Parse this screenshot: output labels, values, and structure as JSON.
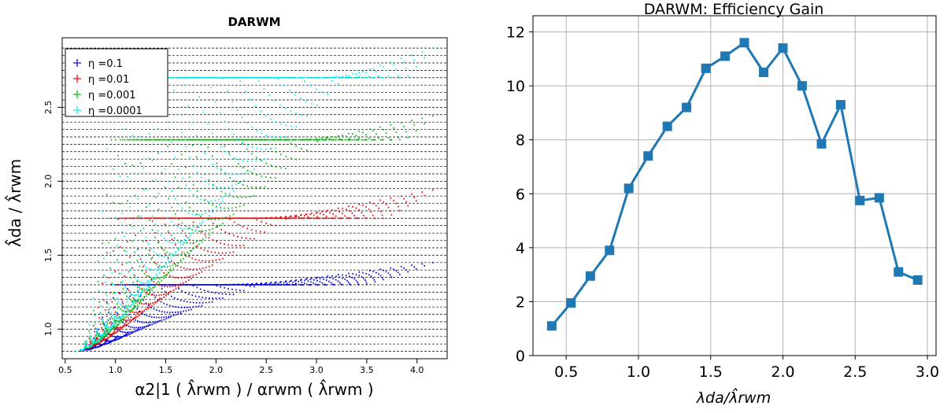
{
  "chart_data": [
    {
      "type": "scatter",
      "title": "DARWM",
      "xlabel": "α2|1 ( λ̂rwm ) /  αrwm ( λ̂rwm )",
      "ylabel": "λ̂da / λ̂rwm",
      "xlim": [
        0.47,
        4.3
      ],
      "ylim": [
        0.8,
        2.97
      ],
      "xticks": [
        {
          "v": 0.5,
          "label": "0.5"
        },
        {
          "v": 1.0,
          "label": "1.0"
        },
        {
          "v": 1.5,
          "label": "1.5"
        },
        {
          "v": 2.0,
          "label": "2.0"
        },
        {
          "v": 2.5,
          "label": "2.5"
        },
        {
          "v": 3.0,
          "label": "3.0"
        },
        {
          "v": 3.5,
          "label": "3.5"
        },
        {
          "v": 4.0,
          "label": "4.0"
        }
      ],
      "yticks": [
        {
          "v": 1.0,
          "label": "1.0"
        },
        {
          "v": 1.5,
          "label": "1.5"
        },
        {
          "v": 2.0,
          "label": "2.0"
        },
        {
          "v": 2.5,
          "label": "2.5"
        }
      ],
      "grid": "horizontal dashed",
      "legend_position": "top-left",
      "series": [
        {
          "name": "η =0.1",
          "color": "#0000ee",
          "plateau": 1.3,
          "final": 1.45
        },
        {
          "name": "η =0.01",
          "color": "#ee0000",
          "plateau": 1.75,
          "final": 1.94
        },
        {
          "name": "η =0.001",
          "color": "#00bb00",
          "plateau": 2.28,
          "final": 2.44
        },
        {
          "name": "η =0.0001",
          "color": "#00eeee",
          "plateau": 2.7,
          "final": 2.9
        }
      ]
    },
    {
      "type": "line",
      "title": "DARWM: Efficiency Gain",
      "xlabel": "λda/λ̂rwm",
      "ylabel": "",
      "xlim": [
        0.27,
        3.06
      ],
      "ylim": [
        0,
        12.6
      ],
      "grid": true,
      "color": "#1f77b4",
      "x": [
        0.4,
        0.533,
        0.667,
        0.8,
        0.933,
        1.067,
        1.2,
        1.333,
        1.467,
        1.6,
        1.733,
        1.867,
        2.0,
        2.133,
        2.267,
        2.4,
        2.533,
        2.667,
        2.8,
        2.933
      ],
      "y": [
        1.1,
        1.95,
        2.95,
        3.9,
        6.2,
        7.4,
        8.5,
        9.2,
        10.65,
        11.1,
        11.6,
        10.5,
        11.4,
        10.0,
        7.85,
        9.3,
        5.75,
        5.85,
        3.1,
        2.8
      ],
      "xticks": [
        {
          "v": 0.5,
          "label": "0.5"
        },
        {
          "v": 1.0,
          "label": "1.0"
        },
        {
          "v": 1.5,
          "label": "1.5"
        },
        {
          "v": 2.0,
          "label": "2.0"
        },
        {
          "v": 2.5,
          "label": "2.5"
        },
        {
          "v": 3.0,
          "label": "3.0"
        }
      ],
      "yticks": [
        {
          "v": 0,
          "label": "0"
        },
        {
          "v": 2,
          "label": "2"
        },
        {
          "v": 4,
          "label": "4"
        },
        {
          "v": 6,
          "label": "6"
        },
        {
          "v": 8,
          "label": "8"
        },
        {
          "v": 10,
          "label": "10"
        },
        {
          "v": 12,
          "label": "12"
        }
      ]
    }
  ]
}
